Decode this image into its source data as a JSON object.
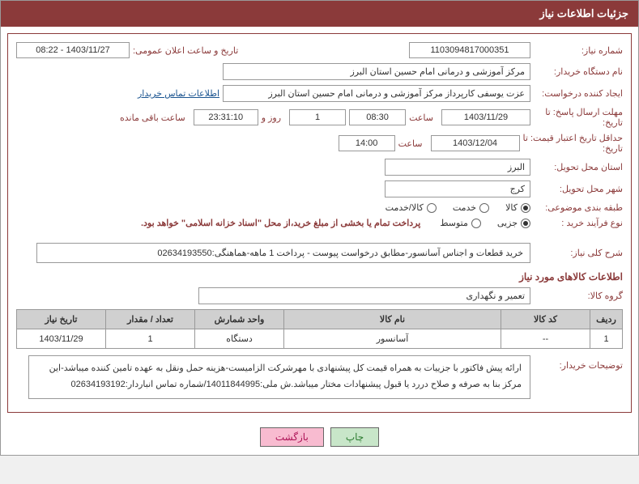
{
  "header": {
    "title": "جزئیات اطلاعات نیاز"
  },
  "fields": {
    "needNumber": {
      "label": "شماره نیاز:",
      "value": "1103094817000351"
    },
    "announceDate": {
      "label": "تاریخ و ساعت اعلان عمومی:",
      "value": "1403/11/27 - 08:22"
    },
    "buyerOrg": {
      "label": "نام دستگاه خریدار:",
      "value": "مرکز آموزشی و درمانی امام حسین استان البرز"
    },
    "requester": {
      "label": "ایجاد کننده درخواست:",
      "value": "عزت یوسفی کارپرداز مرکز آموزشی و درمانی امام حسین استان البرز"
    },
    "buyerContactLink": "اطلاعات تماس خریدار",
    "deadline": {
      "labelLine1": "مهلت ارسال پاسخ: تا",
      "labelLine2": "تاریخ:",
      "date": "1403/11/29",
      "timeLabel": "ساعت",
      "time": "08:30",
      "days": "1",
      "daysAndLabel": "روز و",
      "countdown": "23:31:10",
      "remainLabel": "ساعت باقی مانده"
    },
    "validity": {
      "labelLine1": "حداقل تاریخ اعتبار قیمت: تا",
      "labelLine2": "تاریخ:",
      "date": "1403/12/04",
      "timeLabel": "ساعت",
      "time": "14:00"
    },
    "province": {
      "label": "استان محل تحویل:",
      "value": "البرز"
    },
    "city": {
      "label": "شهر محل تحویل:",
      "value": "کرج"
    },
    "category": {
      "label": "طبقه بندی موضوعی:",
      "options": [
        {
          "label": "کالا",
          "selected": true
        },
        {
          "label": "خدمت",
          "selected": false
        },
        {
          "label": "کالا/خدمت",
          "selected": false
        }
      ]
    },
    "processType": {
      "label": "نوع فرآیند خرید :",
      "options": [
        {
          "label": "جزیی",
          "selected": true
        },
        {
          "label": "متوسط",
          "selected": false
        }
      ],
      "note": "پرداخت تمام یا بخشی از مبلغ خرید،از محل \"اسناد خزانه اسلامی\" خواهد بود."
    },
    "generalDesc": {
      "label": "شرح کلی نیاز:",
      "value": "خرید قطعات و اجناس آسانسور-مطابق درخواست پیوست - پرداخت 1 ماهه-هماهنگی:02634193550"
    }
  },
  "itemsSection": {
    "title": "اطلاعات کالاهای مورد نیاز",
    "groupLabel": "گروه کالا:",
    "groupValue": "تعمیر و نگهداری"
  },
  "table": {
    "columns": [
      "ردیف",
      "کد کالا",
      "نام کالا",
      "واحد شمارش",
      "تعداد / مقدار",
      "تاریخ نیاز"
    ],
    "rows": [
      [
        "1",
        "--",
        "آسانسور",
        "دستگاه",
        "1",
        "1403/11/29"
      ]
    ]
  },
  "buyerNotes": {
    "label": "توضیحات خریدار:",
    "value": "ارائه پیش فاکتور با جزییات به همراه قیمت کل پیشنهادی با مهرشرکت الزامیست-هزینه حمل ونقل به عهده تامین کننده میباشد-این مرکز بنا به صرفه و صلاح دررد یا قبول پیشنهادات مختار میباشد.ش ملی:14011844995/شماره تماس انباردار:02634193192"
  },
  "buttons": {
    "print": "چاپ",
    "back": "بازگشت"
  }
}
